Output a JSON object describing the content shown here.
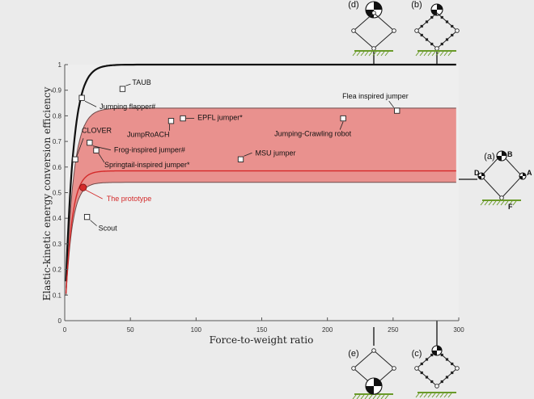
{
  "chart_data": {
    "type": "line",
    "xlabel": "Force-to-weight ratio",
    "ylabel": "Elastic-kinetic energy conversion efficiency",
    "xlim": [
      0,
      300
    ],
    "ylim": [
      0,
      1
    ],
    "xticks": [
      0,
      50,
      100,
      150,
      200,
      250,
      300
    ],
    "yticks": [
      0,
      0.1,
      0.2,
      0.3,
      0.4,
      0.5,
      0.6,
      0.7,
      0.8,
      0.9,
      1
    ],
    "grid": false,
    "band": {
      "upper_asymptote": 0.83,
      "lower_asymptote": 0.54,
      "color": "#e8807c"
    },
    "curves": [
      {
        "color": "#111111",
        "asymptote": 1.0
      },
      {
        "color": "#d42a2a",
        "asymptote": 0.585
      }
    ],
    "points": [
      {
        "label": "TAUB",
        "x": 44,
        "y": 0.905
      },
      {
        "label": "Jumping flapper#",
        "x": 13,
        "y": 0.87
      },
      {
        "label": "Flea inspired jumper",
        "x": 253,
        "y": 0.82
      },
      {
        "label": "EPFL jumper*",
        "x": 90,
        "y": 0.79
      },
      {
        "label": "JumpRoACH",
        "x": 81,
        "y": 0.78
      },
      {
        "label": "Jumping-Crawling robot",
        "x": 212,
        "y": 0.79
      },
      {
        "label": "CLOVER",
        "x": 8,
        "y": 0.63
      },
      {
        "label": "Frog-inspired jumper#",
        "x": 19,
        "y": 0.695
      },
      {
        "label": "Springtail-inspired jumper*",
        "x": 24,
        "y": 0.665
      },
      {
        "label": "MSU jumper",
        "x": 134,
        "y": 0.63
      },
      {
        "label": "Scout",
        "x": 17,
        "y": 0.405
      }
    ],
    "highlight": {
      "label": "The prototype",
      "x": 14,
      "y": 0.52,
      "color": "#d42a2a"
    }
  },
  "insets": [
    {
      "label": "(a)",
      "points": [
        "A",
        "B",
        "D",
        "F"
      ]
    },
    {
      "label": "(b)"
    },
    {
      "label": "(c)"
    },
    {
      "label": "(d)"
    },
    {
      "label": "(e)"
    }
  ]
}
